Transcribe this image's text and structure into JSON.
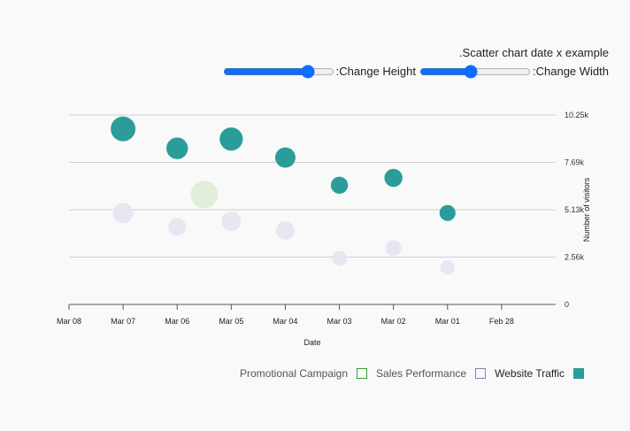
{
  "header": {
    "title": ".Scatter chart date x example",
    "height_label": ":Change Height",
    "width_label": ":Change Width",
    "height_slider_value": 0.8,
    "width_slider_value": 0.45
  },
  "colors": {
    "website": "#2a9d9a",
    "sales": "#e6e3ef",
    "promo": "#dcebd5",
    "promo_border": "#3a9a3a",
    "sales_border": "#8a7bb5",
    "grid": "#d0d0d0",
    "slider": "#0d6efd"
  },
  "legend": [
    {
      "name": "Promotional Campaign",
      "icon": "promo-square-icon"
    },
    {
      "name": "Sales Performance",
      "icon": "sales-square-icon"
    },
    {
      "name": "Website Traffic",
      "icon": "website-square-icon"
    }
  ],
  "chart_data": {
    "type": "scatter",
    "title": ".Scatter chart date x example",
    "xlabel": "Date",
    "ylabel": "Number of visitors",
    "x_ticks": [
      "Mar 08",
      "Mar 07",
      "Mar 06",
      "Mar 05",
      "Mar 04",
      "Mar 03",
      "Mar 02",
      "Mar 01",
      "Feb 28"
    ],
    "y_ticks": [
      "0",
      "2.56k",
      "5.13k",
      "7.69k",
      "10.25k"
    ],
    "y_tick_values": [
      0,
      2563,
      5125,
      7688,
      10250
    ],
    "xlim": [
      "2024-03-08",
      "2024-02-28"
    ],
    "ylim": [
      0,
      10250
    ],
    "x_reversed": true,
    "y_axis_side": "right",
    "grid": true,
    "legend_position": "bottom-right",
    "series": [
      {
        "name": "Website Traffic",
        "points": [
          {
            "x": "2024-03-07",
            "y": 9500,
            "size": 1.0
          },
          {
            "x": "2024-03-06",
            "y": 8450,
            "size": 0.8
          },
          {
            "x": "2024-03-05",
            "y": 8950,
            "size": 0.9
          },
          {
            "x": "2024-03-04",
            "y": 7950,
            "size": 0.72
          },
          {
            "x": "2024-03-03",
            "y": 6450,
            "size": 0.52
          },
          {
            "x": "2024-03-02",
            "y": 6850,
            "size": 0.58
          },
          {
            "x": "2024-03-01",
            "y": 4950,
            "size": 0.45
          }
        ]
      },
      {
        "name": "Sales Performance",
        "points": [
          {
            "x": "2024-03-07",
            "y": 4950,
            "size": 0.72
          },
          {
            "x": "2024-03-06",
            "y": 4200,
            "size": 0.55
          },
          {
            "x": "2024-03-05",
            "y": 4500,
            "size": 0.66
          },
          {
            "x": "2024-03-04",
            "y": 4000,
            "size": 0.6
          },
          {
            "x": "2024-03-03",
            "y": 2500,
            "size": 0.38
          },
          {
            "x": "2024-03-02",
            "y": 3050,
            "size": 0.45
          },
          {
            "x": "2024-03-01",
            "y": 2000,
            "size": 0.34
          }
        ]
      },
      {
        "name": "Promotional Campaign",
        "points": [
          {
            "x": "2024-03-05T12:00",
            "y": 5950,
            "size": 1.15
          }
        ]
      }
    ]
  }
}
